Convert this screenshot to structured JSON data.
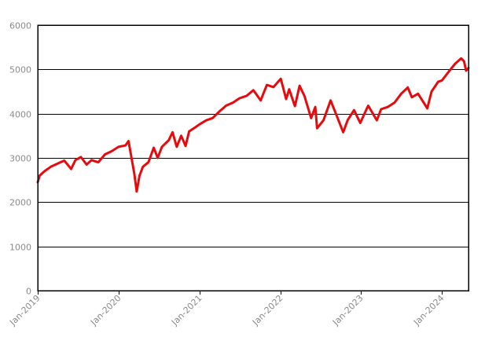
{
  "colors": {
    "line": "#e8090c",
    "grid": "#000000",
    "tick_text": "#8a8a8a",
    "background": "#ffffff"
  },
  "chart_data": {
    "type": "line",
    "title": "",
    "xlabel": "",
    "ylabel": "",
    "x_axis_type": "date",
    "xlim": [
      "2019-01-01",
      "2024-04-30"
    ],
    "ylim": [
      0,
      6000
    ],
    "y_ticks": [
      0,
      1000,
      2000,
      3000,
      4000,
      5000,
      6000
    ],
    "x_ticks": [
      {
        "date": "2019-01-01",
        "label": "Jan-2019"
      },
      {
        "date": "2020-01-01",
        "label": "Jan-2020"
      },
      {
        "date": "2021-01-01",
        "label": "Jan-2021"
      },
      {
        "date": "2022-01-01",
        "label": "Jan-2022"
      },
      {
        "date": "2023-01-01",
        "label": "Jan-2023"
      },
      {
        "date": "2024-01-01",
        "label": "Jan-2024"
      }
    ],
    "grid": "horizontal",
    "legend": "none",
    "series": [
      {
        "points": [
          [
            "2019-01-01",
            2450
          ],
          [
            "2019-01-10",
            2600
          ],
          [
            "2019-02-01",
            2700
          ],
          [
            "2019-03-01",
            2800
          ],
          [
            "2019-04-01",
            2870
          ],
          [
            "2019-05-01",
            2940
          ],
          [
            "2019-06-01",
            2750
          ],
          [
            "2019-06-20",
            2950
          ],
          [
            "2019-07-15",
            3020
          ],
          [
            "2019-08-10",
            2850
          ],
          [
            "2019-09-01",
            2950
          ],
          [
            "2019-10-01",
            2900
          ],
          [
            "2019-11-01",
            3080
          ],
          [
            "2019-12-01",
            3150
          ],
          [
            "2020-01-01",
            3250
          ],
          [
            "2020-02-01",
            3280
          ],
          [
            "2020-02-15",
            3380
          ],
          [
            "2020-02-25",
            3100
          ],
          [
            "2020-03-12",
            2650
          ],
          [
            "2020-03-23",
            2240
          ],
          [
            "2020-04-05",
            2600
          ],
          [
            "2020-04-20",
            2800
          ],
          [
            "2020-05-15",
            2900
          ],
          [
            "2020-06-08",
            3230
          ],
          [
            "2020-06-26",
            3000
          ],
          [
            "2020-07-15",
            3250
          ],
          [
            "2020-08-15",
            3400
          ],
          [
            "2020-09-01",
            3580
          ],
          [
            "2020-09-20",
            3250
          ],
          [
            "2020-10-10",
            3500
          ],
          [
            "2020-10-30",
            3270
          ],
          [
            "2020-11-15",
            3600
          ],
          [
            "2020-12-15",
            3700
          ],
          [
            "2021-01-01",
            3760
          ],
          [
            "2021-02-01",
            3850
          ],
          [
            "2021-03-01",
            3900
          ],
          [
            "2021-04-01",
            4050
          ],
          [
            "2021-05-01",
            4180
          ],
          [
            "2021-06-01",
            4250
          ],
          [
            "2021-07-01",
            4350
          ],
          [
            "2021-08-01",
            4400
          ],
          [
            "2021-09-01",
            4530
          ],
          [
            "2021-10-04",
            4300
          ],
          [
            "2021-11-01",
            4650
          ],
          [
            "2021-12-01",
            4600
          ],
          [
            "2022-01-03",
            4790
          ],
          [
            "2022-01-27",
            4330
          ],
          [
            "2022-02-10",
            4550
          ],
          [
            "2022-03-08",
            4170
          ],
          [
            "2022-03-29",
            4630
          ],
          [
            "2022-04-20",
            4400
          ],
          [
            "2022-05-20",
            3900
          ],
          [
            "2022-06-08",
            4150
          ],
          [
            "2022-06-16",
            3670
          ],
          [
            "2022-07-15",
            3850
          ],
          [
            "2022-08-16",
            4300
          ],
          [
            "2022-09-13",
            3950
          ],
          [
            "2022-10-12",
            3580
          ],
          [
            "2022-11-01",
            3850
          ],
          [
            "2022-11-30",
            4080
          ],
          [
            "2022-12-28",
            3790
          ],
          [
            "2023-01-15",
            3990
          ],
          [
            "2023-02-02",
            4180
          ],
          [
            "2023-03-13",
            3850
          ],
          [
            "2023-04-01",
            4100
          ],
          [
            "2023-05-01",
            4150
          ],
          [
            "2023-06-01",
            4250
          ],
          [
            "2023-07-01",
            4450
          ],
          [
            "2023-07-31",
            4590
          ],
          [
            "2023-08-18",
            4370
          ],
          [
            "2023-09-15",
            4450
          ],
          [
            "2023-10-27",
            4120
          ],
          [
            "2023-11-15",
            4500
          ],
          [
            "2023-12-15",
            4720
          ],
          [
            "2024-01-01",
            4750
          ],
          [
            "2024-02-01",
            4950
          ],
          [
            "2024-03-01",
            5130
          ],
          [
            "2024-03-28",
            5250
          ],
          [
            "2024-04-10",
            5180
          ],
          [
            "2024-04-19",
            4970
          ],
          [
            "2024-04-30",
            5030
          ]
        ]
      }
    ]
  }
}
